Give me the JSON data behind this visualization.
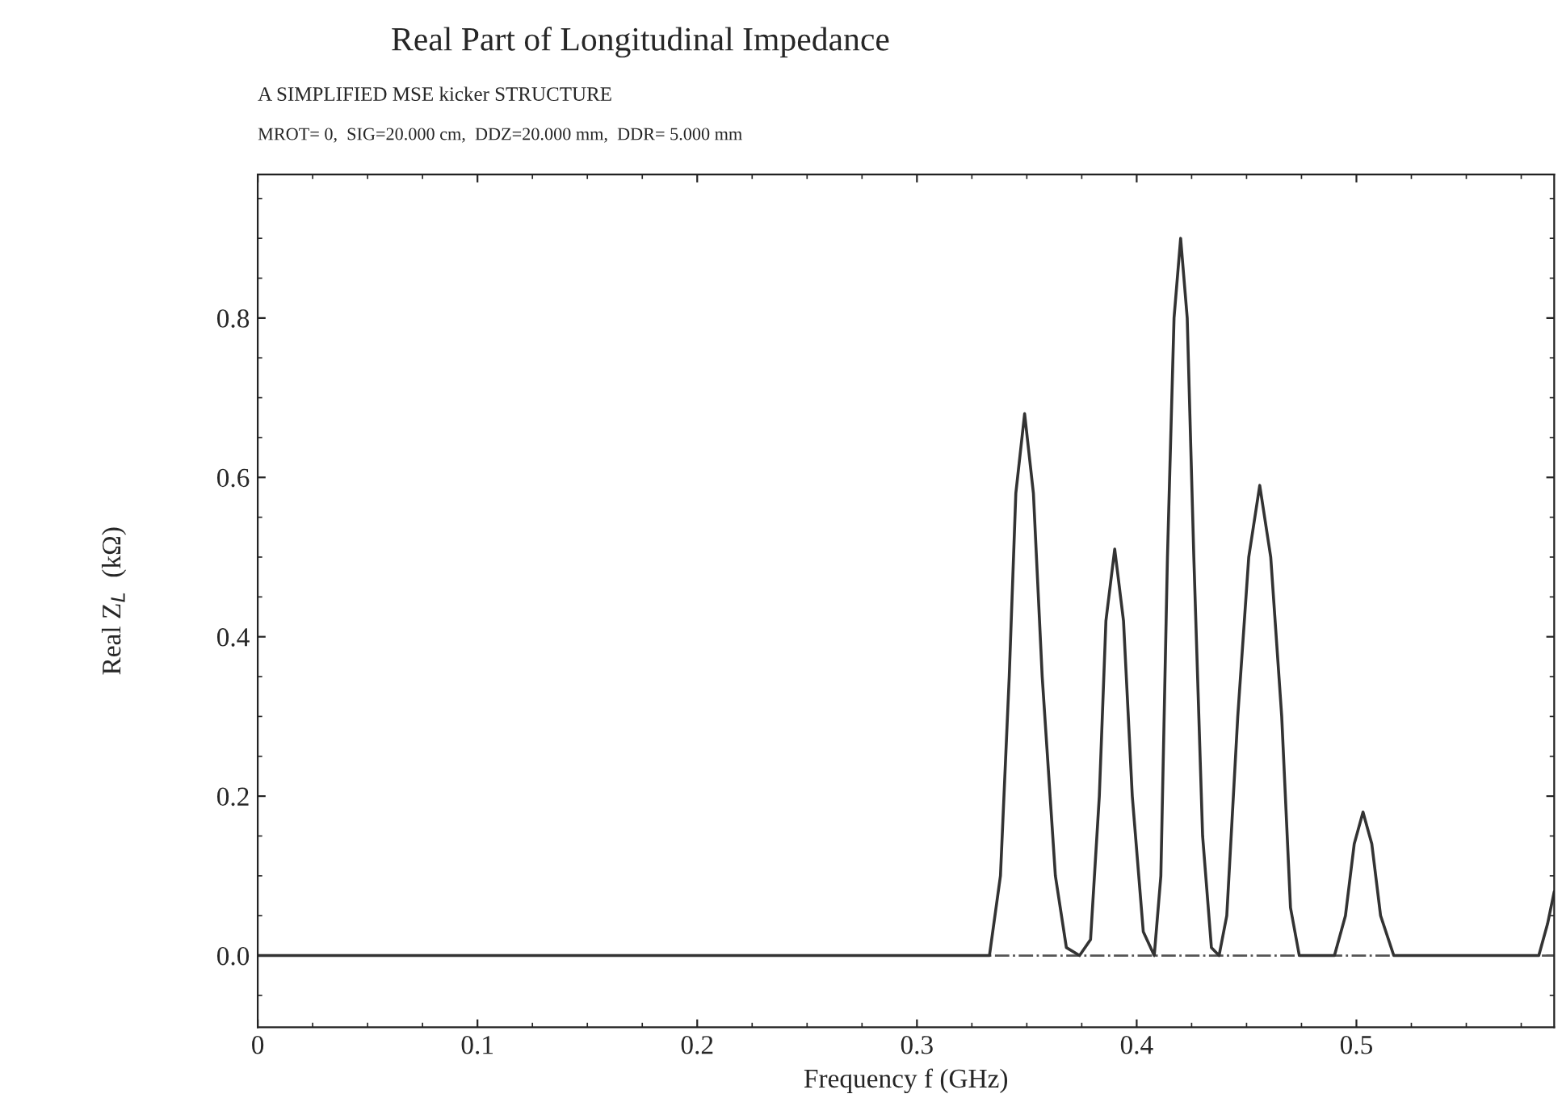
{
  "chart_data": {
    "type": "line",
    "title": "Real Part of Longitudinal Impedance",
    "subtitle": "A SIMPLIFIED MSE kicker STRUCTURE",
    "annotations": [
      "MROT= 0,  SIG=20.000 cm,  DDZ=20.000 mm,  DDR= 5.000 mm"
    ],
    "xlabel": "Frequency f (GHz)",
    "ylabel": "Real Z$_{L}$  (kΩ)",
    "series": [
      {
        "color": "#333333",
        "x": [
          0,
          0.3,
          0.333,
          0.338,
          0.342,
          0.345,
          0.349,
          0.353,
          0.357,
          0.363,
          0.368,
          0.374,
          0.379,
          0.383,
          0.386,
          0.39,
          0.394,
          0.398,
          0.403,
          0.408,
          0.411,
          0.414,
          0.417,
          0.42,
          0.423,
          0.426,
          0.43,
          0.434,
          0.4375,
          0.441,
          0.446,
          0.451,
          0.456,
          0.461,
          0.466,
          0.47,
          0.474,
          0.49,
          0.495,
          0.499,
          0.503,
          0.507,
          0.511,
          0.517,
          0.583,
          0.587,
          0.59
        ],
        "values": [
          0,
          0,
          0,
          0.1,
          0.35,
          0.58,
          0.68,
          0.58,
          0.35,
          0.1,
          0.01,
          0,
          0.02,
          0.2,
          0.42,
          0.51,
          0.42,
          0.2,
          0.03,
          0,
          0.1,
          0.5,
          0.8,
          0.9,
          0.8,
          0.5,
          0.15,
          0.01,
          0,
          0.05,
          0.3,
          0.5,
          0.59,
          0.5,
          0.3,
          0.06,
          0,
          0,
          0.05,
          0.14,
          0.18,
          0.14,
          0.05,
          0,
          0,
          0.04,
          0.08
        ]
      }
    ],
    "ref_lines": [
      {
        "axis": "y",
        "value": 0,
        "line_style": "dashed",
        "color": "#555555"
      }
    ],
    "xlim": [
      0,
      0.59
    ],
    "xticks": [
      0,
      0.1,
      0.2,
      0.3,
      0.4,
      0.5
    ],
    "ylim": [
      -0.09,
      0.98
    ],
    "yticks": [
      {
        "value": 0,
        "label": "0.0"
      },
      {
        "value": 0.2,
        "label": "0.2"
      },
      {
        "value": 0.4,
        "label": "0.4"
      },
      {
        "value": 0.6,
        "label": "0.6"
      },
      {
        "value": 0.8,
        "label": "0.8"
      }
    ],
    "grid": false,
    "legend": false,
    "marker": "none",
    "line_style": "solid"
  }
}
